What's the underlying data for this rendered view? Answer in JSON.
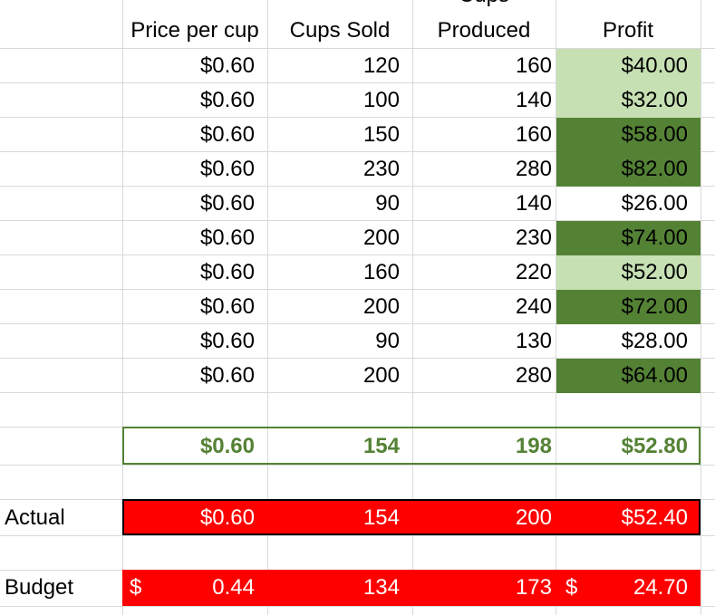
{
  "headers": {
    "price": "Price per cup",
    "sold": "Cups Sold",
    "produced_top": "Cups",
    "produced": "Produced",
    "profit": "Profit"
  },
  "rows": [
    {
      "price": "$0.60",
      "sold": "120",
      "produced": "160",
      "profit": "$40.00",
      "shade": "light"
    },
    {
      "price": "$0.60",
      "sold": "100",
      "produced": "140",
      "profit": "$32.00",
      "shade": "light"
    },
    {
      "price": "$0.60",
      "sold": "150",
      "produced": "160",
      "profit": "$58.00",
      "shade": "dark"
    },
    {
      "price": "$0.60",
      "sold": "230",
      "produced": "280",
      "profit": "$82.00",
      "shade": "dark"
    },
    {
      "price": "$0.60",
      "sold": "90",
      "produced": "140",
      "profit": "$26.00",
      "shade": "none"
    },
    {
      "price": "$0.60",
      "sold": "200",
      "produced": "230",
      "profit": "$74.00",
      "shade": "dark"
    },
    {
      "price": "$0.60",
      "sold": "160",
      "produced": "220",
      "profit": "$52.00",
      "shade": "light"
    },
    {
      "price": "$0.60",
      "sold": "200",
      "produced": "240",
      "profit": "$72.00",
      "shade": "dark"
    },
    {
      "price": "$0.60",
      "sold": "90",
      "produced": "130",
      "profit": "$28.00",
      "shade": "none"
    },
    {
      "price": "$0.60",
      "sold": "200",
      "produced": "280",
      "profit": "$64.00",
      "shade": "dark"
    }
  ],
  "average": {
    "price": "$0.60",
    "sold": "154",
    "produced": "198",
    "profit": "$52.80"
  },
  "actual": {
    "label": "Actual",
    "price": "$0.60",
    "sold": "154",
    "produced": "200",
    "profit": "$52.40"
  },
  "budget": {
    "label": "Budget",
    "price_symbol": "$",
    "price": "0.44",
    "sold": "134",
    "produced": "173",
    "profit_symbol": "$",
    "profit": "24.70"
  },
  "colors": {
    "light_green": "#c6e0b4",
    "dark_green": "#548235",
    "average_text": "#548235",
    "alert_red": "#ff0000",
    "gridline": "#d9d9d9"
  }
}
